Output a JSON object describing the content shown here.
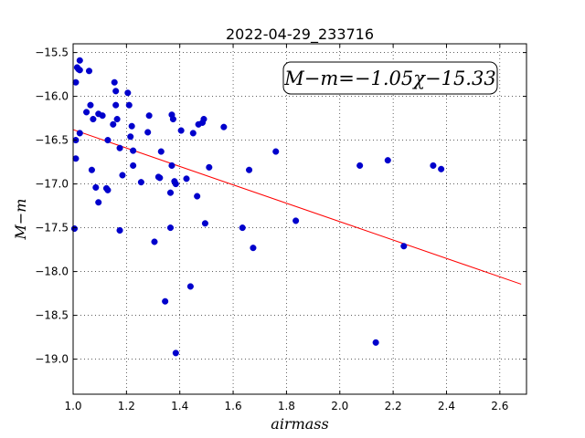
{
  "chart_data": {
    "type": "scatter",
    "title": "2022-04-29_233716",
    "xlabel": "airmass",
    "ylabel": "M−m",
    "xlim": [
      1.0,
      2.7
    ],
    "ylim": [
      -19.4,
      -15.4
    ],
    "y_inverted": true,
    "grid": true,
    "xticks": [
      1.0,
      1.2,
      1.4,
      1.6,
      1.8,
      2.0,
      2.2,
      2.4,
      2.6
    ],
    "xtick_labels": [
      "1.0",
      "1.2",
      "1.4",
      "1.6",
      "1.8",
      "2.0",
      "2.2",
      "2.4",
      "2.6"
    ],
    "yticks": [
      -15.5,
      -16.0,
      -16.5,
      -17.0,
      -17.5,
      -18.0,
      -18.5,
      -19.0
    ],
    "ytick_labels": [
      "−15.5",
      "−16.0",
      "−16.5",
      "−17.0",
      "−17.5",
      "−18.0",
      "−18.5",
      "−19.0"
    ],
    "annotation": "M−m=−1.05χ−15.33",
    "fit": {
      "slope": -1.05,
      "intercept": -15.33,
      "x_range": [
        1.0,
        2.68
      ],
      "color": "#ff0000"
    },
    "point_color": "#0000cc",
    "points": [
      [
        1.005,
        -17.51
      ],
      [
        1.01,
        -16.5
      ],
      [
        1.01,
        -16.71
      ],
      [
        1.01,
        -15.84
      ],
      [
        1.015,
        -15.67
      ],
      [
        1.02,
        -15.69
      ],
      [
        1.025,
        -15.59
      ],
      [
        1.025,
        -15.7
      ],
      [
        1.025,
        -16.42
      ],
      [
        1.05,
        -16.18
      ],
      [
        1.06,
        -15.71
      ],
      [
        1.065,
        -16.1
      ],
      [
        1.07,
        -16.84
      ],
      [
        1.075,
        -16.26
      ],
      [
        1.085,
        -17.04
      ],
      [
        1.095,
        -16.2
      ],
      [
        1.095,
        -17.21
      ],
      [
        1.11,
        -16.22
      ],
      [
        1.125,
        -17.05
      ],
      [
        1.13,
        -16.5
      ],
      [
        1.13,
        -17.07
      ],
      [
        1.15,
        -16.32
      ],
      [
        1.155,
        -15.84
      ],
      [
        1.16,
        -16.1
      ],
      [
        1.16,
        -15.94
      ],
      [
        1.165,
        -16.26
      ],
      [
        1.175,
        -16.59
      ],
      [
        1.175,
        -17.53
      ],
      [
        1.185,
        -16.9
      ],
      [
        1.205,
        -15.96
      ],
      [
        1.21,
        -16.1
      ],
      [
        1.215,
        -16.46
      ],
      [
        1.22,
        -16.34
      ],
      [
        1.225,
        -16.79
      ],
      [
        1.225,
        -16.62
      ],
      [
        1.255,
        -16.98
      ],
      [
        1.28,
        -16.41
      ],
      [
        1.285,
        -16.22
      ],
      [
        1.305,
        -17.66
      ],
      [
        1.32,
        -16.92
      ],
      [
        1.325,
        -16.93
      ],
      [
        1.33,
        -16.63
      ],
      [
        1.345,
        -18.34
      ],
      [
        1.365,
        -17.1
      ],
      [
        1.365,
        -17.5
      ],
      [
        1.37,
        -16.21
      ],
      [
        1.37,
        -16.79
      ],
      [
        1.375,
        -16.26
      ],
      [
        1.38,
        -16.97
      ],
      [
        1.385,
        -17.0
      ],
      [
        1.385,
        -18.93
      ],
      [
        1.405,
        -16.39
      ],
      [
        1.425,
        -16.94
      ],
      [
        1.44,
        -18.17
      ],
      [
        1.45,
        -16.42
      ],
      [
        1.465,
        -17.14
      ],
      [
        1.47,
        -16.32
      ],
      [
        1.485,
        -16.3
      ],
      [
        1.49,
        -16.26
      ],
      [
        1.495,
        -17.45
      ],
      [
        1.51,
        -16.81
      ],
      [
        1.565,
        -16.35
      ],
      [
        1.635,
        -17.5
      ],
      [
        1.66,
        -16.84
      ],
      [
        1.675,
        -17.73
      ],
      [
        1.76,
        -16.63
      ],
      [
        1.835,
        -17.42
      ],
      [
        2.075,
        -16.79
      ],
      [
        2.135,
        -18.81
      ],
      [
        2.18,
        -16.73
      ],
      [
        2.24,
        -17.71
      ],
      [
        2.35,
        -16.79
      ],
      [
        2.38,
        -16.83
      ]
    ]
  }
}
